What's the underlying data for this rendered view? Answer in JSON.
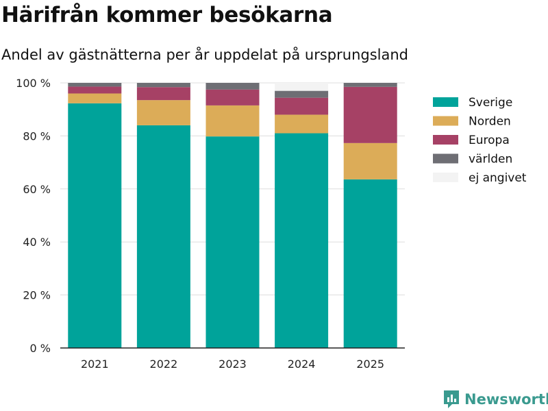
{
  "header": {
    "title": "Härifrån kommer besökarna",
    "subtitle": "Andel av gästnätterna per år uppdelat på ursprungsland"
  },
  "brand": {
    "name": "Newsworthy",
    "color": "#3a9a8f"
  },
  "chart_data": {
    "type": "bar",
    "stacked": true,
    "categories": [
      "2021",
      "2022",
      "2023",
      "2024",
      "2025"
    ],
    "series": [
      {
        "name": "Sverige",
        "color": "#00a39a",
        "values": [
          92.3,
          84.0,
          79.8,
          81.0,
          63.6
        ]
      },
      {
        "name": "Norden",
        "color": "#dcac58",
        "values": [
          3.7,
          9.5,
          11.7,
          7.0,
          13.7
        ]
      },
      {
        "name": "Europa",
        "color": "#a64165",
        "values": [
          2.6,
          4.9,
          6.0,
          6.4,
          21.2
        ]
      },
      {
        "name": "världen",
        "color": "#6e6e74",
        "values": [
          1.4,
          1.6,
          2.5,
          2.6,
          1.5
        ]
      },
      {
        "name": "ej angivet",
        "color": "#f3f3f3",
        "values": [
          0.0,
          0.0,
          0.0,
          3.0,
          0.0
        ]
      }
    ],
    "ylim": [
      0,
      100
    ],
    "yticks": [
      0,
      20,
      40,
      60,
      80,
      100
    ],
    "ytick_labels": [
      "0 %",
      "20 %",
      "40 %",
      "60 %",
      "80 %",
      "100 %"
    ],
    "grid": true,
    "legend_position": "right"
  }
}
